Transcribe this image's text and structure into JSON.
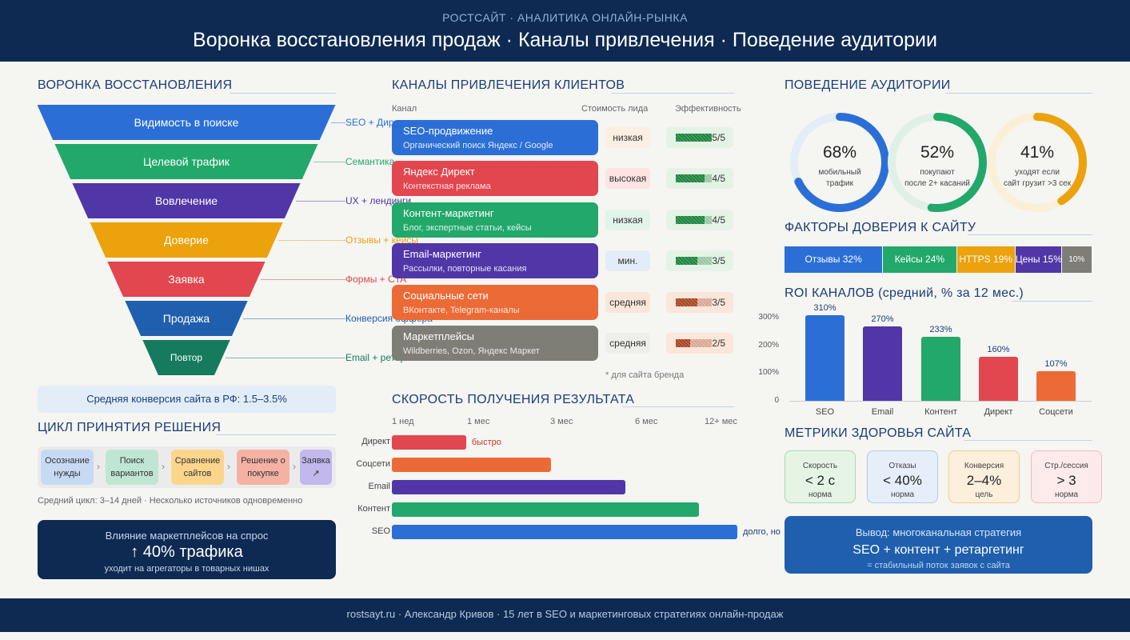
{
  "header": {
    "subtitle": "РОСТСАЙТ · АНАЛИТИКА ОНЛАЙН-РЫНКА",
    "title": "Воронка восстановления продаж · Каналы привлечения · Поведение аудитории"
  },
  "funnel": {
    "title": "ВОРОНКА ВОССТАНОВЛЕНИЯ",
    "stages": [
      {
        "label": "Видимость в поиске",
        "note": "SEO + Директ",
        "color": "#2b6fd6"
      },
      {
        "label": "Целевой трафик",
        "note": "Семантика",
        "color": "#22a86b"
      },
      {
        "label": "Вовлечение",
        "note": "UX + лендинги",
        "color": "#5136a8"
      },
      {
        "label": "Доверие",
        "note": "Отзывы + кейсы",
        "color": "#eba20c"
      },
      {
        "label": "Заявка",
        "note": "Формы + CTA",
        "color": "#e2464e"
      },
      {
        "label": "Продажа",
        "note": "Конверсия оффера",
        "color": "#1f5fae"
      },
      {
        "label": "Повтор",
        "note": "Email + ретаргетинг",
        "color": "#157a5e"
      }
    ],
    "conversion": "Средняя конверсия сайта в РФ: 1.5–3.5%"
  },
  "cycle": {
    "title": "ЦИКЛ ПРИНЯТИЯ РЕШЕНИЯ",
    "steps": [
      {
        "label": "Осознание нужды",
        "color": "#c7daf4"
      },
      {
        "label": "Поиск вариантов",
        "color": "#bfe6d2"
      },
      {
        "label": "Сравнение сайтов",
        "color": "#fbd58c"
      },
      {
        "label": "Решение о покупке",
        "color": "#f5b2a4"
      },
      {
        "label": "Заявка ↗",
        "color": "#c2b8ee"
      }
    ],
    "arrow": "›",
    "note": "Средний цикл: 3–14 дней · Несколько источников одновременно"
  },
  "marketplaces": {
    "line1": "Влияние маркетплейсов на спрос",
    "line2": "↑ 40% трафика",
    "line3": "уходит на агрегаторы в товарных нишах"
  },
  "channels": {
    "title": "КАНАЛЫ ПРИВЛЕЧЕНИЯ КЛИЕНТОВ",
    "col_channel": "Канал",
    "col_cost": "Стоимость лида",
    "col_eff": "Эффективность",
    "rows": [
      {
        "name": "SEO-продвижение",
        "desc": "Органический поиск Яндекс / Google",
        "cost": "низкая",
        "score": 5,
        "score_text": "5/5",
        "color": "#2b6fd6",
        "cost_bg": "#fbeee2",
        "eff_bg": "#e4f3e6",
        "bar": "#37a35a"
      },
      {
        "name": "Яндекс Директ",
        "desc": "Контекстная реклама",
        "cost": "высокая",
        "score": 4,
        "score_text": "4/5",
        "color": "#e2464e",
        "cost_bg": "#fde3e2",
        "eff_bg": "#e4f3e6",
        "bar": "#37a35a"
      },
      {
        "name": "Контент-маркетинг",
        "desc": "Блог, экспертные статьи, кейсы",
        "cost": "низкая",
        "score": 4,
        "score_text": "4/5",
        "color": "#22a86b",
        "cost_bg": "#e2f3ea",
        "eff_bg": "#e4f3e6",
        "bar": "#37a35a"
      },
      {
        "name": "Email-маркетинг",
        "desc": "Рассылки, повторные касания",
        "cost": "мин.",
        "score": 3,
        "score_text": "3/5",
        "color": "#5136a8",
        "cost_bg": "#e3ecf8",
        "eff_bg": "#e4f3e6",
        "bar": "#37a35a"
      },
      {
        "name": "Социальные сети",
        "desc": "ВКонтакте, Telegram-каналы",
        "cost": "средняя",
        "score": 3,
        "score_text": "3/5",
        "color": "#ec6a36",
        "cost_bg": "#fbe6da",
        "eff_bg": "#fbe6da",
        "bar": "#c8613c"
      },
      {
        "name": "Маркетплейсы",
        "desc": "Wildberries, Ozon, Яндекс Маркет",
        "cost": "средняя",
        "score": 2,
        "score_text": "2/5",
        "color": "#7e7e76",
        "cost_bg": "#eeeeea",
        "eff_bg": "#fbe6da",
        "bar": "#c8613c"
      }
    ],
    "note": "* для сайта бренда"
  },
  "speed": {
    "title": "СКОРОСТЬ ПОЛУЧЕНИЯ РЕЗУЛЬТАТА",
    "ticks": [
      "1 нед",
      "1 мес",
      "3 мес",
      "6 мес",
      "12+ мес"
    ],
    "bars": [
      {
        "label": "Директ",
        "value": 0.215,
        "color": "#e2464e",
        "note": "быстро",
        "note_color": "#c0392b"
      },
      {
        "label": "Соцсети",
        "value": 0.46,
        "color": "#ec6a36",
        "note": "",
        "note_color": "#333"
      },
      {
        "label": "Email",
        "value": 0.675,
        "color": "#5136a8",
        "note": "",
        "note_color": "#333"
      },
      {
        "label": "Контент",
        "value": 0.89,
        "color": "#22a86b",
        "note": "",
        "note_color": "#333"
      },
      {
        "label": "SEO",
        "value": 1.0,
        "color": "#2b6fd6",
        "note": "долго, но",
        "note_color": "#1b3d78"
      }
    ]
  },
  "audience": {
    "title": "ПОВЕДЕНИЕ АУДИТОРИИ",
    "rings": [
      {
        "pct": "68%",
        "value": 0.68,
        "cap1": "мобильный",
        "cap2": "трафик",
        "color": "#2b6fd6",
        "track": "#e3edf8"
      },
      {
        "pct": "52%",
        "value": 0.52,
        "cap1": "покупают",
        "cap2": "после 2+ касаний",
        "color": "#22a86b",
        "track": "#dff1e7"
      },
      {
        "pct": "41%",
        "value": 0.41,
        "cap1": "уходят если",
        "cap2": "сайт грузит >3 сек",
        "color": "#eba20c",
        "track": "#fbefd8"
      }
    ]
  },
  "trust": {
    "title": "ФАКТОРЫ ДОВЕРИЯ К САЙТУ",
    "segments": [
      {
        "label": "Отзывы 32%",
        "value": 32,
        "color": "#2b6fd6"
      },
      {
        "label": "Кейсы 24%",
        "value": 24,
        "color": "#22a86b"
      },
      {
        "label": "HTTPS 19%",
        "value": 19,
        "color": "#eba20c"
      },
      {
        "label": "Цены 15%",
        "value": 15,
        "color": "#5136a8"
      },
      {
        "label": "10%",
        "value": 10,
        "color": "#7e7e76"
      }
    ]
  },
  "chart_data": {
    "type": "bar",
    "title": "ROI КАНАЛОВ (средний, % за 12 мес.)",
    "categories": [
      "SEO",
      "Email",
      "Контент",
      "Директ",
      "Соцсети"
    ],
    "values": [
      310,
      270,
      233,
      160,
      107
    ],
    "value_labels": [
      "310%",
      "270%",
      "233%",
      "160%",
      "107%"
    ],
    "colors": [
      "#2b6fd6",
      "#5136a8",
      "#22a86b",
      "#e2464e",
      "#ec6a36"
    ],
    "yticks": [
      "0",
      "100%",
      "200%",
      "300%"
    ],
    "ylim": [
      0,
      310
    ]
  },
  "health": {
    "title": "МЕТРИКИ ЗДОРОВЬЯ САЙТА",
    "metrics": [
      {
        "title": "Скорость",
        "value": "< 2 с",
        "sub": "норма",
        "bg": "#e6f4e6",
        "border": "#a9d9b2"
      },
      {
        "title": "Отказы",
        "value": "< 40%",
        "sub": "норма",
        "bg": "#e6eef9",
        "border": "#b3c9ea"
      },
      {
        "title": "Конверсия",
        "value": "2–4%",
        "sub": "цель",
        "bg": "#fcefdc",
        "border": "#f0cf9a"
      },
      {
        "title": "Стр./сессия",
        "value": "> 3",
        "sub": "норма",
        "bg": "#fdeaea",
        "border": "#f1bcbc"
      }
    ]
  },
  "conclusion": {
    "line1": "Вывод: многоканальная стратегия",
    "line2": "SEO + контент + ретаргетинг",
    "line3": "= стабильный поток заявок с сайта"
  },
  "footer": {
    "text": "rostsayt.ru · Александр Кривов · 15 лет в SEO и маркетинговых стратегиях онлайн-продаж"
  }
}
